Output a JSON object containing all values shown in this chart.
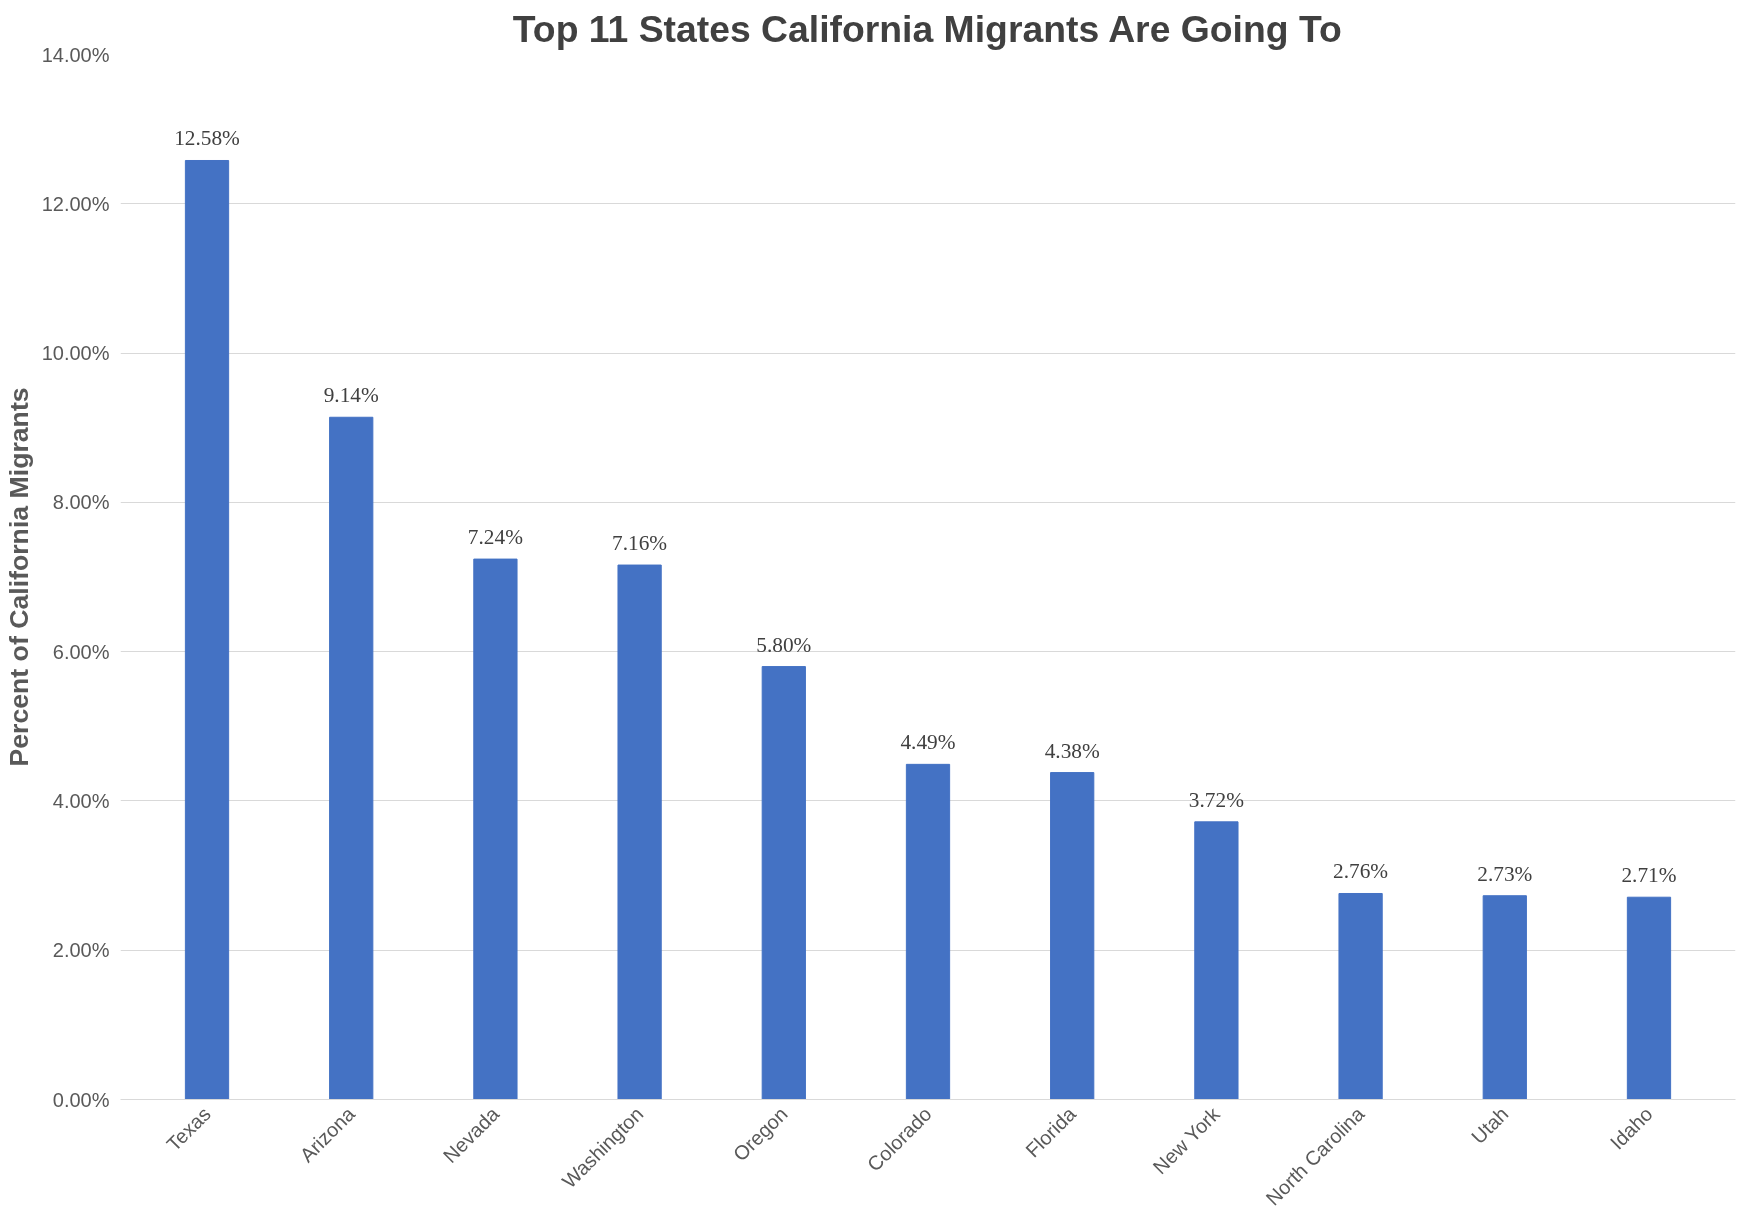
{
  "chart_data": {
    "type": "bar",
    "title": "Top 11 States California Migrants Are Going To",
    "ylabel": "Percent of California Migrants",
    "categories": [
      "Texas",
      "Arizona",
      "Nevada",
      "Washington",
      "Oregon",
      "Colorado",
      "Florida",
      "New York",
      "North Carolina",
      "Utah",
      "Idaho"
    ],
    "values": [
      12.58,
      9.14,
      7.24,
      7.16,
      5.8,
      4.49,
      4.38,
      3.72,
      2.76,
      2.73,
      2.71
    ],
    "value_labels": [
      "12.58%",
      "9.14%",
      "7.24%",
      "7.16%",
      "5.80%",
      "4.49%",
      "4.38%",
      "3.72%",
      "2.76%",
      "2.73%",
      "2.71%"
    ],
    "color": "#4472c4",
    "ylim": [
      0,
      14
    ],
    "yticks": [
      {
        "value": 0,
        "label": "0.00%"
      },
      {
        "value": 2,
        "label": "2.00%"
      },
      {
        "value": 4,
        "label": "4.00%"
      },
      {
        "value": 6,
        "label": "6.00%"
      },
      {
        "value": 8,
        "label": "8.00%"
      },
      {
        "value": 10,
        "label": "10.00%"
      },
      {
        "value": 12,
        "label": "12.00%"
      },
      {
        "value": 14,
        "label": "14.00%"
      }
    ],
    "grid": "y"
  }
}
